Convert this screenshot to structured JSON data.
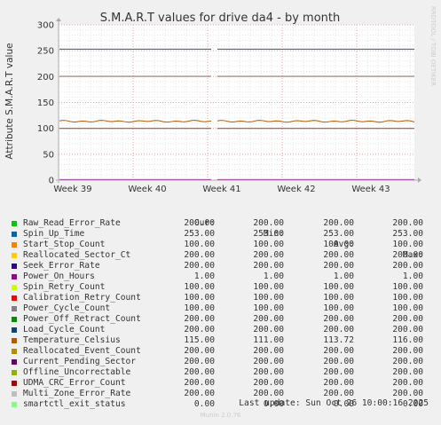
{
  "chart_data": {
    "type": "line",
    "title": "S.M.A.R.T values for drive da4 - by month",
    "ylabel": "Attribute S.M.A.R.T value",
    "ylim": [
      0,
      300
    ],
    "yticks": [
      0,
      50,
      100,
      150,
      200,
      250,
      300
    ],
    "xticks": [
      "Week 39",
      "Week 40",
      "Week 41",
      "Week 42",
      "Week 43"
    ],
    "grid": true,
    "side_text": "RRDTOOL / TOBI OETIKER",
    "columns": [
      "Cur:",
      "Min:",
      "Avg:",
      "Max:"
    ],
    "series": [
      {
        "name": "Raw_Read_Error_Rate",
        "color": "#00cc00",
        "cur": "200.00",
        "min": "200.00",
        "avg": "200.00",
        "max": "200.00",
        "value": 200
      },
      {
        "name": "Spin_Up_Time",
        "color": "#0066b3",
        "cur": "253.00",
        "min": "253.00",
        "avg": "253.00",
        "max": "253.00",
        "value": 253
      },
      {
        "name": "Start_Stop_Count",
        "color": "#ff8000",
        "cur": "100.00",
        "min": "100.00",
        "avg": "100.00",
        "max": "100.00",
        "value": 100
      },
      {
        "name": "Reallocated_Sector_Ct",
        "color": "#ffcc00",
        "cur": "200.00",
        "min": "200.00",
        "avg": "200.00",
        "max": "200.00",
        "value": 200
      },
      {
        "name": "Seek_Error_Rate",
        "color": "#330099",
        "cur": "200.00",
        "min": "200.00",
        "avg": "200.00",
        "max": "200.00",
        "value": 200
      },
      {
        "name": "Power_On_Hours",
        "color": "#990099",
        "cur": "1.00",
        "min": "1.00",
        "avg": "1.00",
        "max": "1.00",
        "value": 1
      },
      {
        "name": "Spin_Retry_Count",
        "color": "#ccff00",
        "cur": "100.00",
        "min": "100.00",
        "avg": "100.00",
        "max": "100.00",
        "value": 100
      },
      {
        "name": "Calibration_Retry_Count",
        "color": "#ff0000",
        "cur": "100.00",
        "min": "100.00",
        "avg": "100.00",
        "max": "100.00",
        "value": 100
      },
      {
        "name": "Power_Cycle_Count",
        "color": "#808080",
        "cur": "100.00",
        "min": "100.00",
        "avg": "100.00",
        "max": "100.00",
        "value": 100
      },
      {
        "name": "Power_Off_Retract_Count",
        "color": "#008f00",
        "cur": "200.00",
        "min": "200.00",
        "avg": "200.00",
        "max": "200.00",
        "value": 200
      },
      {
        "name": "Load_Cycle_Count",
        "color": "#00487d",
        "cur": "200.00",
        "min": "200.00",
        "avg": "200.00",
        "max": "200.00",
        "value": 200
      },
      {
        "name": "Temperature_Celsius",
        "color": "#b35a00",
        "cur": "115.00",
        "min": "111.00",
        "avg": "113.72",
        "max": "116.00",
        "value": 113.72
      },
      {
        "name": "Reallocated_Event_Count",
        "color": "#b38f00",
        "cur": "200.00",
        "min": "200.00",
        "avg": "200.00",
        "max": "200.00",
        "value": 200
      },
      {
        "name": "Current_Pending_Sector",
        "color": "#6b006b",
        "cur": "200.00",
        "min": "200.00",
        "avg": "200.00",
        "max": "200.00",
        "value": 200
      },
      {
        "name": "Offline_Uncorrectable",
        "color": "#8fb300",
        "cur": "200.00",
        "min": "200.00",
        "avg": "200.00",
        "max": "200.00",
        "value": 200
      },
      {
        "name": "UDMA_CRC_Error_Count",
        "color": "#b30000",
        "cur": "200.00",
        "min": "200.00",
        "avg": "200.00",
        "max": "200.00",
        "value": 200
      },
      {
        "name": "Multi_Zone_Error_Rate",
        "color": "#bebebe",
        "cur": "200.00",
        "min": "200.00",
        "avg": "200.00",
        "max": "200.00",
        "value": 200
      },
      {
        "name": "smartctl_exit_status",
        "color": "#80ff80",
        "cur": "0.00",
        "min": "0.00",
        "avg": "0.00",
        "max": "0.00",
        "value": 0
      }
    ]
  },
  "footer": {
    "last_update": "Last update: Sun Oct 26 10:00:16 2025",
    "munin": "Munin 2.0.76"
  }
}
